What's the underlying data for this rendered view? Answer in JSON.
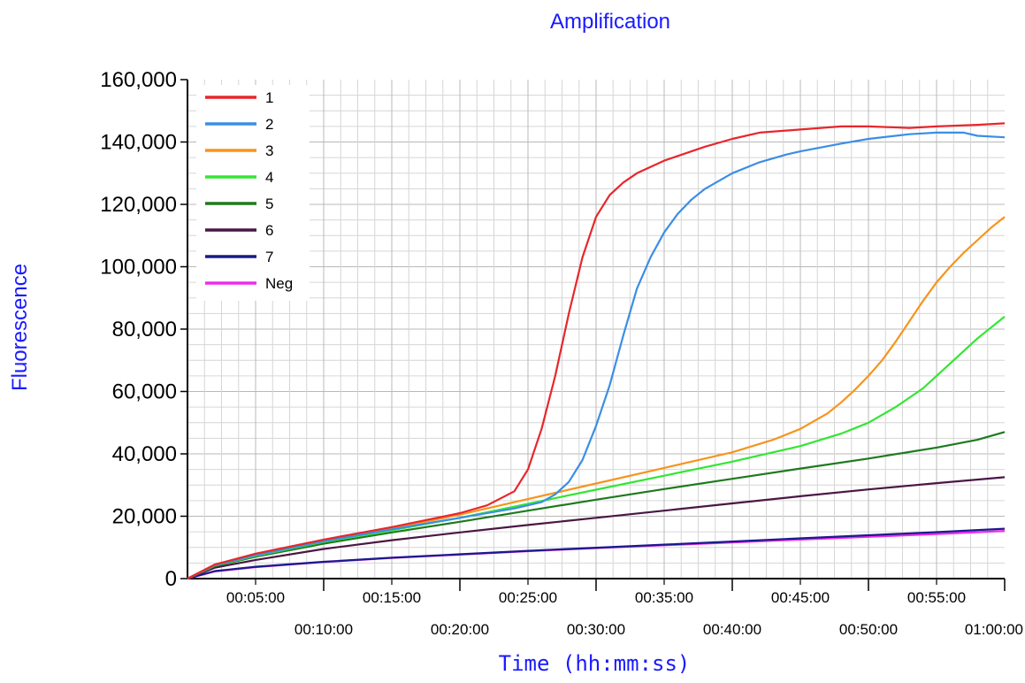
{
  "chart_data": {
    "type": "line",
    "title": "Amplification",
    "xlabel": "Time (hh:mm:ss)",
    "ylabel": "Fluorescence",
    "x_unit": "minutes",
    "xlim": [
      0,
      60
    ],
    "ylim": [
      0,
      160000
    ],
    "yticks": [
      0,
      20000,
      40000,
      60000,
      80000,
      100000,
      120000,
      140000,
      160000
    ],
    "ytick_labels": [
      "0",
      "20,000",
      "40,000",
      "60,000",
      "80,000",
      "100,000",
      "120,000",
      "140,000",
      "160,000"
    ],
    "xticks_upper": [
      5,
      15,
      25,
      35,
      45,
      55
    ],
    "xtick_labels_upper": [
      "00:05:00",
      "00:15:00",
      "00:25:00",
      "00:35:00",
      "00:45:00",
      "00:55:00"
    ],
    "xticks_lower": [
      10,
      20,
      30,
      40,
      50,
      60
    ],
    "xtick_labels_lower": [
      "00:10:00",
      "00:20:00",
      "00:30:00",
      "00:40:00",
      "00:50:00",
      "01:00:00"
    ],
    "grid": true,
    "legend_position": "top-left",
    "series": [
      {
        "name": "1",
        "color": "#e8262b",
        "x": [
          0,
          2,
          5,
          10,
          15,
          20,
          22,
          24,
          25,
          26,
          27,
          28,
          29,
          30,
          31,
          32,
          33,
          35,
          38,
          40,
          42,
          45,
          48,
          50,
          53,
          55,
          58,
          60
        ],
        "y": [
          0,
          4500,
          8000,
          12500,
          16500,
          21000,
          23500,
          28000,
          35000,
          48000,
          65000,
          85000,
          103000,
          116000,
          123000,
          127000,
          130000,
          134000,
          138500,
          141000,
          143000,
          144000,
          145000,
          145000,
          144500,
          145000,
          145500,
          146000
        ]
      },
      {
        "name": "2",
        "color": "#3a8ee6",
        "x": [
          0,
          2,
          5,
          10,
          15,
          20,
          24,
          26,
          27,
          28,
          29,
          30,
          31,
          32,
          33,
          34,
          35,
          36,
          37,
          38,
          40,
          42,
          44,
          45,
          48,
          50,
          53,
          55,
          57,
          58,
          60
        ],
        "y": [
          0,
          4300,
          7500,
          12000,
          15800,
          19500,
          22500,
          24500,
          27000,
          31000,
          38000,
          49000,
          62000,
          78000,
          93000,
          103000,
          111000,
          117000,
          121500,
          125000,
          130000,
          133500,
          136000,
          137000,
          139500,
          141000,
          142500,
          143000,
          143000,
          142000,
          141500
        ]
      },
      {
        "name": "3",
        "color": "#f7941d",
        "x": [
          0,
          2,
          5,
          10,
          15,
          20,
          25,
          30,
          35,
          40,
          43,
          45,
          47,
          48,
          49,
          50,
          51,
          52,
          53,
          54,
          55,
          56,
          57,
          58,
          59,
          60
        ],
        "y": [
          0,
          4300,
          7500,
          12000,
          16000,
          20500,
          25500,
          30500,
          35500,
          40500,
          44500,
          48000,
          53000,
          56500,
          60500,
          65000,
          70000,
          76000,
          82500,
          89000,
          95000,
          100000,
          104500,
          108500,
          112500,
          116000
        ]
      },
      {
        "name": "4",
        "color": "#33e633",
        "x": [
          0,
          2,
          5,
          10,
          15,
          20,
          25,
          30,
          35,
          40,
          45,
          48,
          50,
          52,
          54,
          55,
          56,
          57,
          58,
          59,
          60
        ],
        "y": [
          0,
          4200,
          7300,
          11800,
          15500,
          19500,
          24000,
          28500,
          33000,
          37500,
          42500,
          46500,
          50000,
          55000,
          61000,
          65000,
          69000,
          73000,
          77000,
          80500,
          84000
        ]
      },
      {
        "name": "5",
        "color": "#1e7a1e",
        "x": [
          0,
          2,
          5,
          10,
          15,
          20,
          25,
          30,
          35,
          40,
          45,
          50,
          55,
          58,
          60
        ],
        "y": [
          0,
          4000,
          7000,
          11200,
          14800,
          18200,
          21800,
          25300,
          28700,
          32000,
          35300,
          38500,
          42000,
          44500,
          47000
        ]
      },
      {
        "name": "6",
        "color": "#4a1745",
        "x": [
          0,
          2,
          5,
          10,
          15,
          20,
          25,
          30,
          35,
          40,
          45,
          50,
          55,
          60
        ],
        "y": [
          0,
          3500,
          6000,
          9500,
          12300,
          14800,
          17200,
          19500,
          21800,
          24100,
          26400,
          28600,
          30600,
          32500
        ]
      },
      {
        "name": "7",
        "color": "#1a1a8c",
        "x": [
          0,
          2,
          5,
          10,
          15,
          20,
          25,
          30,
          35,
          40,
          45,
          50,
          55,
          60
        ],
        "y": [
          0,
          2400,
          3800,
          5400,
          6700,
          7800,
          8900,
          9900,
          10900,
          11900,
          12900,
          13900,
          14900,
          16000
        ]
      },
      {
        "name": "Neg",
        "color": "#ee2bee",
        "x": [
          0,
          2,
          5,
          10,
          15,
          20,
          25,
          30,
          35,
          40,
          45,
          50,
          55,
          60
        ],
        "y": [
          0,
          2300,
          3700,
          5300,
          6600,
          7700,
          8800,
          9800,
          10700,
          11600,
          12500,
          13400,
          14300,
          15300
        ]
      }
    ]
  }
}
